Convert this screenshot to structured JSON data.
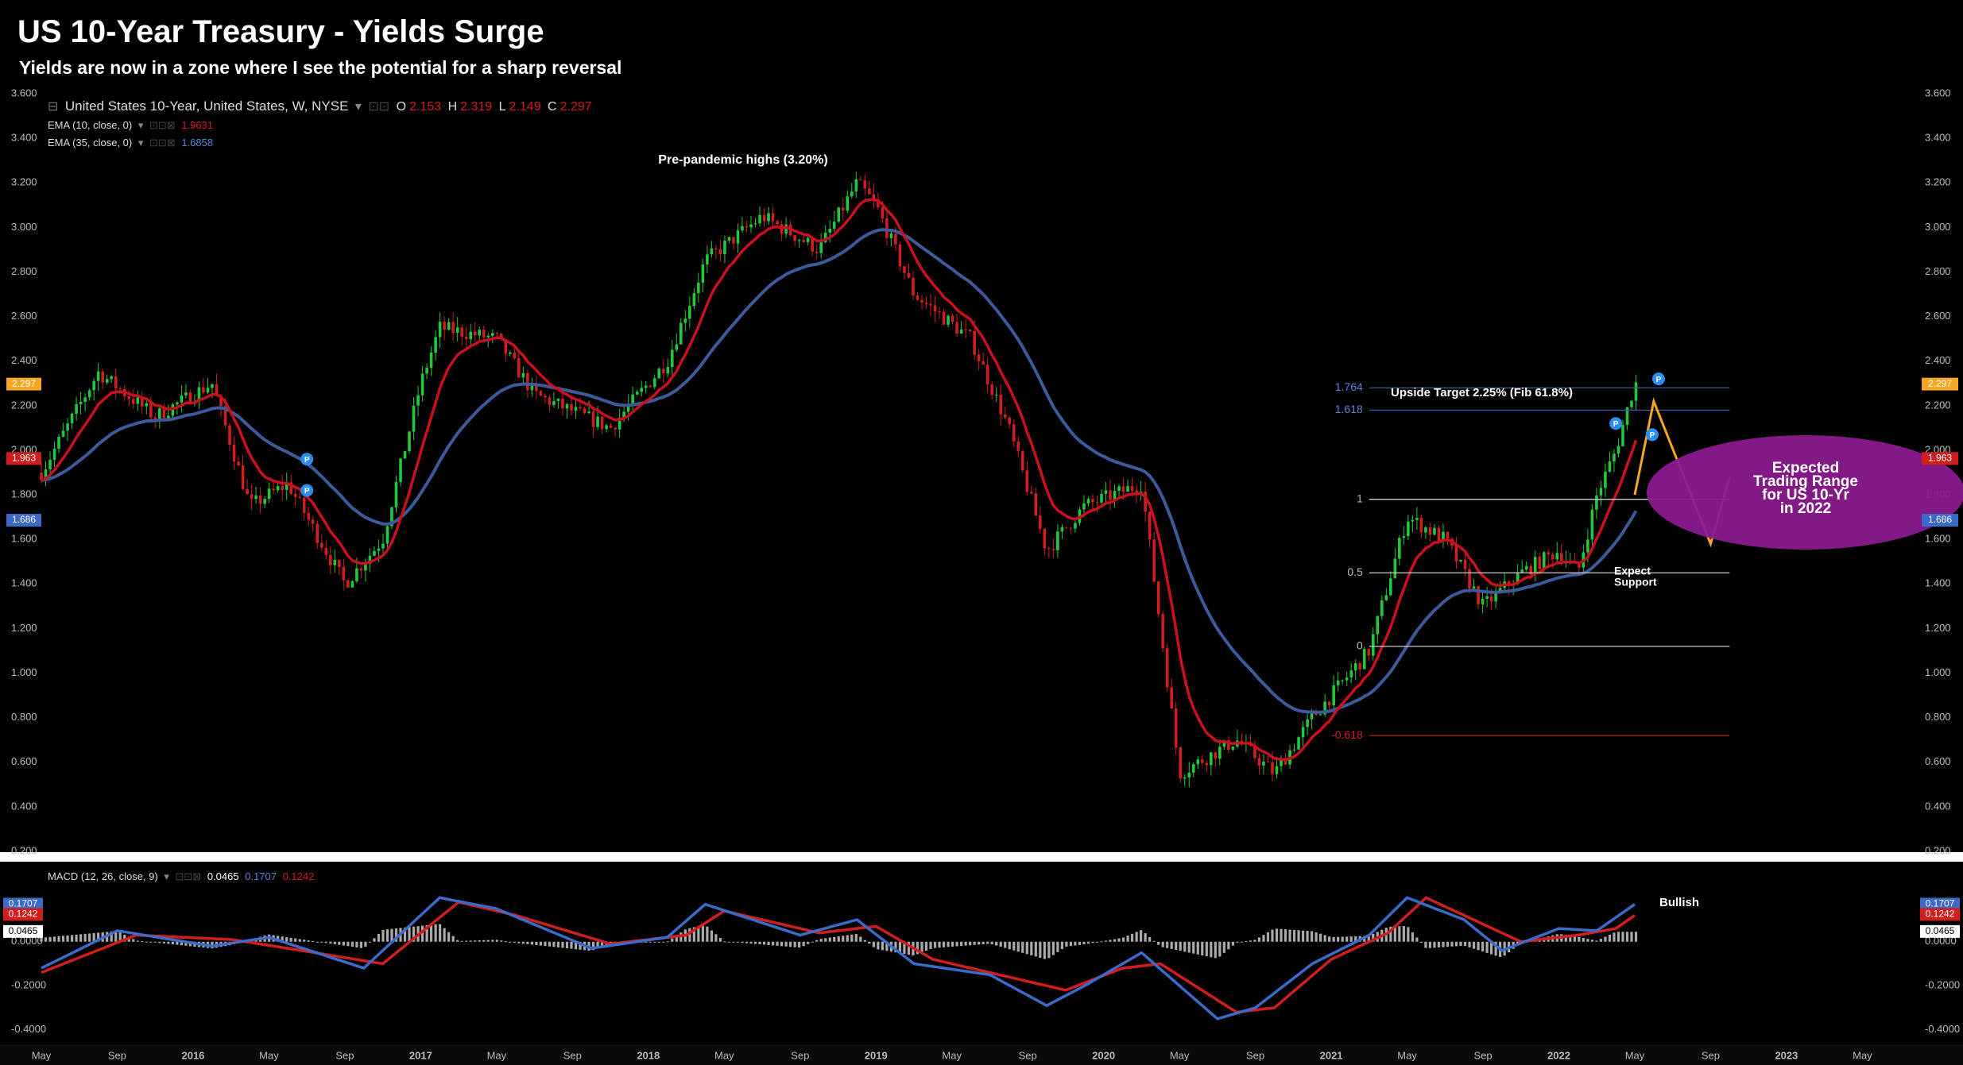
{
  "header": {
    "title": "US 10-Year Treasury - Yields Surge",
    "subtitle": "Yields are now in a zone where I see the potential for a sharp reversal"
  },
  "legend": {
    "symbol": "United States 10-Year, United States, W, NYSE",
    "o_label": "O",
    "o_value": "2.153",
    "h_label": "H",
    "h_value": "2.319",
    "l_label": "L",
    "l_value": "2.149",
    "c_label": "C",
    "c_value": "2.297",
    "ema10_label": "EMA (10, close, 0)",
    "ema10_value": "1.9631",
    "ema35_label": "EMA (35, close, 0)",
    "ema35_value": "1.6858",
    "macd_label": "MACD (12, 26, close, 9)",
    "macd_hist_value": "0.0465",
    "macd_line_value": "0.1707",
    "macd_signal_value": "0.1242"
  },
  "colors": {
    "background": "#000000",
    "candle_up": "#22c83a",
    "candle_down": "#d01e1e",
    "ema10": "#c8101e",
    "ema35": "#3c5a9a",
    "projection": "#f5a623",
    "ellipse": "#8a1a8e",
    "fib_level": "#cccccc",
    "fib_extension": "#b71c1c",
    "fib_top": "#3c5a9a",
    "macd_line": "#3c6ac8",
    "signal_line": "#d01e1e",
    "histogram": "#aaaaaa",
    "pivot_marker": "#2a8ff0"
  },
  "chart_data": [
    {
      "type": "candlestick",
      "title": "United States 10-Year, United States, W, NYSE",
      "x_labels": [
        "May",
        "Sep",
        "2016",
        "May",
        "Sep",
        "2017",
        "May",
        "Sep",
        "2018",
        "May",
        "Sep",
        "2019",
        "May",
        "Sep",
        "2020",
        "May",
        "Sep",
        "2021",
        "May",
        "Sep",
        "2022",
        "May",
        "Sep",
        "2023",
        "May"
      ],
      "x_range": [
        "2015-03",
        "2023-06"
      ],
      "y_ticks": [
        "0.200",
        "0.400",
        "0.600",
        "0.800",
        "1.000",
        "1.200",
        "1.400",
        "1.600",
        "1.800",
        "2.000",
        "2.200",
        "2.400",
        "2.600",
        "2.800",
        "3.000",
        "3.200",
        "3.400",
        "3.600"
      ],
      "ylim": [
        0.2,
        3.6
      ],
      "price_path": [
        {
          "x": "2015-03",
          "y": 1.9
        },
        {
          "x": "2015-06",
          "y": 2.35
        },
        {
          "x": "2015-09",
          "y": 2.15
        },
        {
          "x": "2015-12",
          "y": 2.3
        },
        {
          "x": "2016-02",
          "y": 1.75
        },
        {
          "x": "2016-04",
          "y": 1.85
        },
        {
          "x": "2016-07",
          "y": 1.4
        },
        {
          "x": "2016-09",
          "y": 1.6
        },
        {
          "x": "2016-11",
          "y": 2.3
        },
        {
          "x": "2016-12",
          "y": 2.55
        },
        {
          "x": "2017-03",
          "y": 2.5
        },
        {
          "x": "2017-05",
          "y": 2.25
        },
        {
          "x": "2017-09",
          "y": 2.1
        },
        {
          "x": "2017-12",
          "y": 2.4
        },
        {
          "x": "2018-02",
          "y": 2.85
        },
        {
          "x": "2018-05",
          "y": 3.05
        },
        {
          "x": "2018-08",
          "y": 2.9
        },
        {
          "x": "2018-10",
          "y": 3.2
        },
        {
          "x": "2018-11",
          "y": 3.1
        },
        {
          "x": "2019-01",
          "y": 2.7
        },
        {
          "x": "2019-04",
          "y": 2.5
        },
        {
          "x": "2019-06",
          "y": 2.1
        },
        {
          "x": "2019-08",
          "y": 1.55
        },
        {
          "x": "2019-10",
          "y": 1.75
        },
        {
          "x": "2020-01",
          "y": 1.85
        },
        {
          "x": "2020-03",
          "y": 0.55
        },
        {
          "x": "2020-06",
          "y": 0.7
        },
        {
          "x": "2020-08",
          "y": 0.55
        },
        {
          "x": "2020-10",
          "y": 0.8
        },
        {
          "x": "2021-01",
          "y": 1.1
        },
        {
          "x": "2021-03",
          "y": 1.7
        },
        {
          "x": "2021-05",
          "y": 1.6
        },
        {
          "x": "2021-07",
          "y": 1.3
        },
        {
          "x": "2021-09",
          "y": 1.45
        },
        {
          "x": "2021-11",
          "y": 1.55
        },
        {
          "x": "2021-12",
          "y": 1.45
        },
        {
          "x": "2022-01",
          "y": 1.8
        },
        {
          "x": "2022-02",
          "y": 2.0
        },
        {
          "x": "2022-03",
          "y": 2.3
        }
      ],
      "ohlc_last": {
        "open": 2.153,
        "high": 2.319,
        "low": 2.149,
        "close": 2.297
      },
      "series": [
        {
          "name": "EMA (10, close, 0)",
          "last": 1.9631
        },
        {
          "name": "EMA (35, close, 0)",
          "last": 1.6858
        }
      ],
      "price_labels": [
        {
          "text": "2.297",
          "y": 2.297,
          "color": "#f5a623"
        },
        {
          "text": "1.963",
          "y": 1.963,
          "color": "#d01e1e"
        },
        {
          "text": "1.686",
          "y": 1.686,
          "color": "#3c6ac8"
        }
      ],
      "fib_levels": [
        {
          "label": "1.764",
          "y": 2.28,
          "color": "#3c5a9a"
        },
        {
          "label": "1.618",
          "y": 2.18,
          "color": "#3c5a9a"
        },
        {
          "label": "1",
          "y": 1.78,
          "color": "#cccccc"
        },
        {
          "label": "0.5",
          "y": 1.45,
          "color": "#cccccc"
        },
        {
          "label": "0",
          "y": 1.12,
          "color": "#cccccc"
        },
        {
          "label": "-0.618",
          "y": 0.72,
          "color": "#b71c1c"
        }
      ],
      "fib_x_range": [
        "2021-01",
        "2022-08"
      ],
      "annotations": {
        "pre_pandemic": "Pre-pandemic highs (3.20%)",
        "upside_target": "Upside Target 2.25% (Fib 61.8%)",
        "expect_support_1": "Expect",
        "expect_support_2": "Support",
        "trading_range_1": "Expected",
        "trading_range_2": "Trading Range",
        "trading_range_3": "for US 10-Yr",
        "trading_range_4": "in 2022"
      },
      "projection_path": [
        {
          "x": "2022-03",
          "y": 1.8
        },
        {
          "x": "2022-04",
          "y": 2.22
        },
        {
          "x": "2022-07",
          "y": 1.58
        },
        {
          "x": "2022-08",
          "y": 1.88
        }
      ],
      "pivot_markers": [
        {
          "x": "2016-05",
          "y": 1.96,
          "label": "P"
        },
        {
          "x": "2016-05",
          "y": 1.82,
          "label": "P"
        },
        {
          "x": "2022-02",
          "y": 2.12,
          "label": "P"
        },
        {
          "x": "2022-03",
          "y": 2.07,
          "label": "P"
        },
        {
          "x": "2022-03",
          "y": 2.32,
          "label": "P"
        }
      ]
    },
    {
      "type": "line",
      "title": "MACD (12, 26, close, 9)",
      "y_ticks": [
        "-0.4000",
        "-0.2000",
        "0.0000"
      ],
      "ylim": [
        -0.43,
        0.23
      ],
      "macd_path": [
        {
          "x": "2015-03",
          "y": -0.12
        },
        {
          "x": "2015-07",
          "y": 0.05
        },
        {
          "x": "2015-12",
          "y": -0.02
        },
        {
          "x": "2016-03",
          "y": 0.02
        },
        {
          "x": "2016-08",
          "y": -0.12
        },
        {
          "x": "2016-12",
          "y": 0.2
        },
        {
          "x": "2017-03",
          "y": 0.15
        },
        {
          "x": "2017-08",
          "y": -0.03
        },
        {
          "x": "2017-12",
          "y": 0.02
        },
        {
          "x": "2018-02",
          "y": 0.17
        },
        {
          "x": "2018-07",
          "y": 0.03
        },
        {
          "x": "2018-10",
          "y": 0.1
        },
        {
          "x": "2019-01",
          "y": -0.1
        },
        {
          "x": "2019-05",
          "y": -0.15
        },
        {
          "x": "2019-08",
          "y": -0.29
        },
        {
          "x": "2019-10",
          "y": -0.2
        },
        {
          "x": "2020-01",
          "y": -0.05
        },
        {
          "x": "2020-05",
          "y": -0.35
        },
        {
          "x": "2020-07",
          "y": -0.3
        },
        {
          "x": "2020-10",
          "y": -0.1
        },
        {
          "x": "2021-01",
          "y": 0.03
        },
        {
          "x": "2021-03",
          "y": 0.2
        },
        {
          "x": "2021-06",
          "y": 0.1
        },
        {
          "x": "2021-08",
          "y": -0.04
        },
        {
          "x": "2021-11",
          "y": 0.06
        },
        {
          "x": "2022-01",
          "y": 0.05
        },
        {
          "x": "2022-03",
          "y": 0.17
        }
      ],
      "signal_path": [
        {
          "x": "2015-03",
          "y": -0.14
        },
        {
          "x": "2015-08",
          "y": 0.03
        },
        {
          "x": "2016-01",
          "y": 0.01
        },
        {
          "x": "2016-04",
          "y": -0.03
        },
        {
          "x": "2016-09",
          "y": -0.1
        },
        {
          "x": "2017-01",
          "y": 0.18
        },
        {
          "x": "2017-04",
          "y": 0.12
        },
        {
          "x": "2017-09",
          "y": -0.01
        },
        {
          "x": "2018-01",
          "y": 0.03
        },
        {
          "x": "2018-03",
          "y": 0.14
        },
        {
          "x": "2018-08",
          "y": 0.04
        },
        {
          "x": "2018-11",
          "y": 0.07
        },
        {
          "x": "2019-02",
          "y": -0.08
        },
        {
          "x": "2019-06",
          "y": -0.16
        },
        {
          "x": "2019-09",
          "y": -0.22
        },
        {
          "x": "2019-12",
          "y": -0.12
        },
        {
          "x": "2020-02",
          "y": -0.1
        },
        {
          "x": "2020-06",
          "y": -0.32
        },
        {
          "x": "2020-08",
          "y": -0.3
        },
        {
          "x": "2020-11",
          "y": -0.08
        },
        {
          "x": "2021-02",
          "y": 0.04
        },
        {
          "x": "2021-04",
          "y": 0.2
        },
        {
          "x": "2021-07",
          "y": 0.08
        },
        {
          "x": "2021-09",
          "y": 0.0
        },
        {
          "x": "2021-12",
          "y": 0.03
        },
        {
          "x": "2022-02",
          "y": 0.06
        },
        {
          "x": "2022-03",
          "y": 0.12
        }
      ],
      "price_labels": [
        {
          "text": "0.1707",
          "y": 0.1707,
          "color": "#3c6ac8"
        },
        {
          "text": "0.1242",
          "y": 0.1242,
          "color": "#d01e1e"
        },
        {
          "text": "0.0465",
          "y": 0.0465,
          "color": "#ffffff"
        }
      ],
      "annotation": "Bullish"
    }
  ]
}
